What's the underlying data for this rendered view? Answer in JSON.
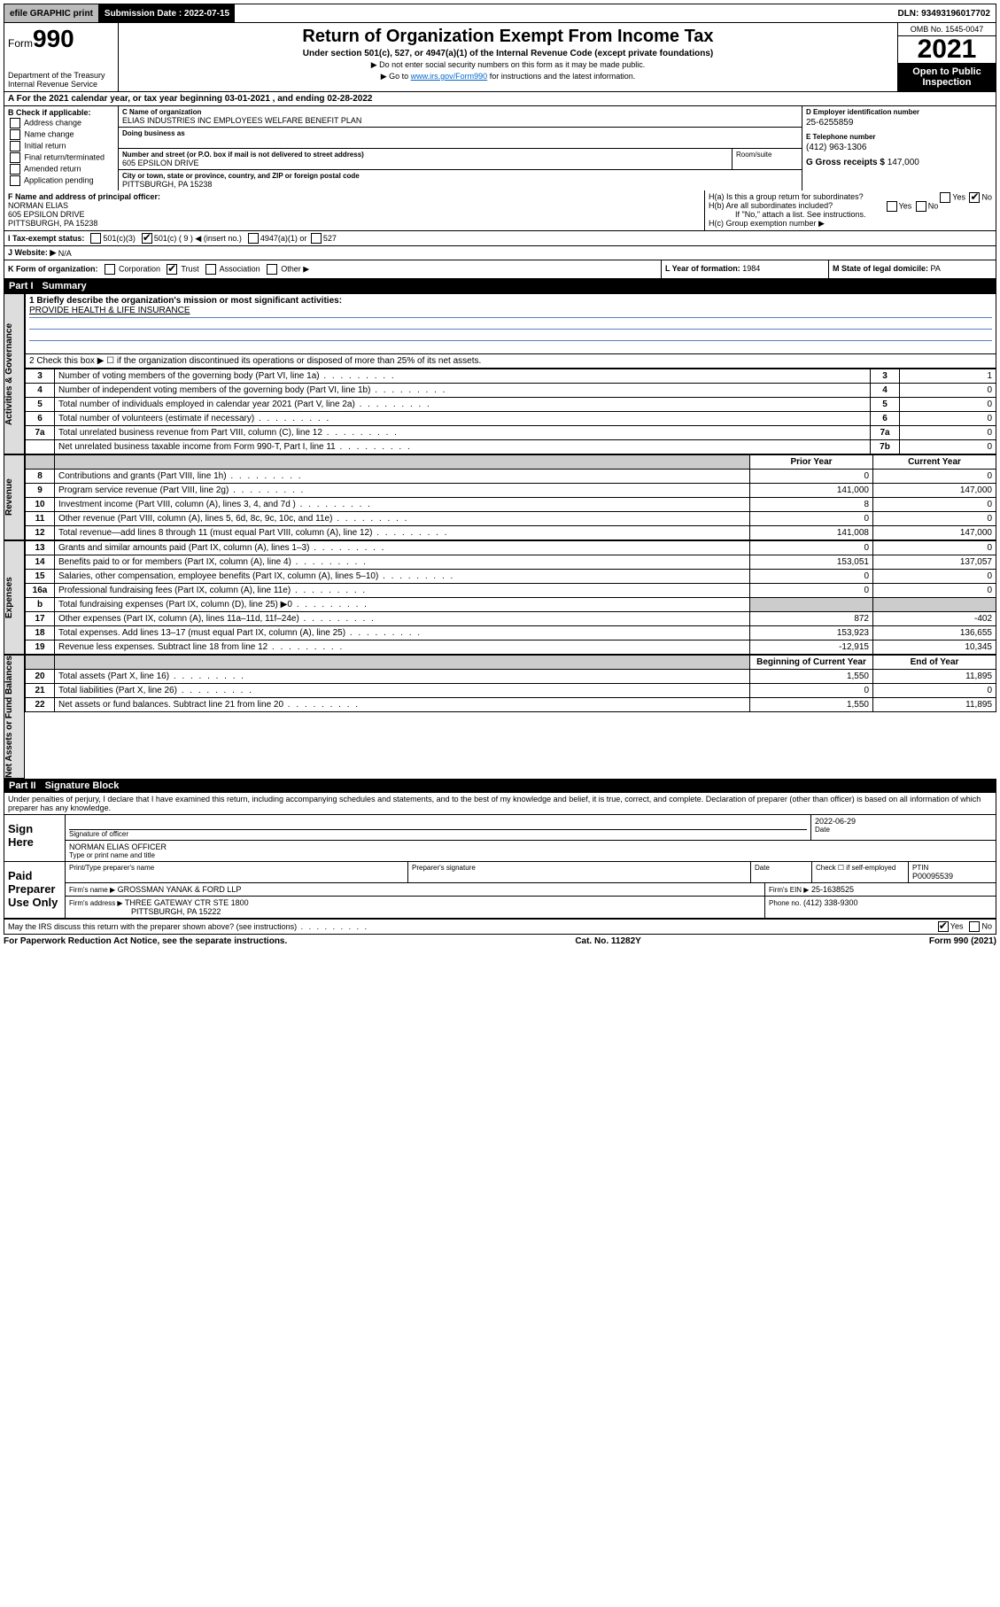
{
  "topbar": {
    "efile": "efile GRAPHIC print",
    "submission_label": "Submission Date : 2022-07-15",
    "dln": "DLN: 93493196017702"
  },
  "header": {
    "form_word": "Form",
    "form_num": "990",
    "dept": "Department of the Treasury",
    "irs": "Internal Revenue Service",
    "title": "Return of Organization Exempt From Income Tax",
    "subtitle": "Under section 501(c), 527, or 4947(a)(1) of the Internal Revenue Code (except private foundations)",
    "note1": "▶ Do not enter social security numbers on this form as it may be made public.",
    "note2_pre": "▶ Go to ",
    "note2_link": "www.irs.gov/Form990",
    "note2_post": " for instructions and the latest information.",
    "omb": "OMB No. 1545-0047",
    "year": "2021",
    "inspection": "Open to Public Inspection"
  },
  "line_a": "A For the 2021 calendar year, or tax year beginning 03-01-2021  , and ending 02-28-2022",
  "col_b": {
    "title": "B Check if applicable:",
    "items": [
      "Address change",
      "Name change",
      "Initial return",
      "Final return/terminated",
      "Amended return",
      "Application pending"
    ]
  },
  "col_c": {
    "name_label": "C Name of organization",
    "name": "ELIAS INDUSTRIES INC EMPLOYEES WELFARE BENEFIT PLAN",
    "dba_label": "Doing business as",
    "addr_label": "Number and street (or P.O. box if mail is not delivered to street address)",
    "addr": "605 EPSILON DRIVE",
    "room_label": "Room/suite",
    "city_label": "City or town, state or province, country, and ZIP or foreign postal code",
    "city": "PITTSBURGH, PA  15238"
  },
  "col_d": {
    "ein_label": "D Employer identification number",
    "ein": "25-6255859",
    "phone_label": "E Telephone number",
    "phone": "(412) 963-1306",
    "gross_label": "G Gross receipts $",
    "gross": "147,000"
  },
  "row_f": {
    "label": "F Name and address of principal officer:",
    "name": "NORMAN ELIAS",
    "addr1": "605 EPSILON DRIVE",
    "addr2": "PITTSBURGH, PA  15238"
  },
  "row_h": {
    "ha": "H(a)  Is this a group return for subordinates?",
    "hb": "H(b)  Are all subordinates included?",
    "hb_note": "If \"No,\" attach a list. See instructions.",
    "hc": "H(c)  Group exemption number ▶",
    "yes": "Yes",
    "no": "No"
  },
  "row_i": {
    "label": "I  Tax-exempt status:",
    "c3": "501(c)(3)",
    "c9": "501(c) ( 9 ) ◀ (insert no.)",
    "a1": "4947(a)(1) or",
    "s527": "527"
  },
  "row_j": {
    "label": "J  Website: ▶",
    "val": "N/A"
  },
  "row_k": {
    "label": "K Form of organization:",
    "corp": "Corporation",
    "trust": "Trust",
    "assoc": "Association",
    "other": "Other ▶"
  },
  "row_l": {
    "label": "L Year of formation:",
    "val": "1984"
  },
  "row_m": {
    "label": "M State of legal domicile:",
    "val": "PA"
  },
  "part1": {
    "label": "Part I",
    "title": "Summary"
  },
  "summary": {
    "l1_label": "1  Briefly describe the organization's mission or most significant activities:",
    "l1_val": "PROVIDE HEALTH & LIFE INSURANCE",
    "l2": "2  Check this box ▶ ☐  if the organization discontinued its operations or disposed of more than 25% of its net assets.",
    "rows_gov": [
      {
        "n": "3",
        "t": "Number of voting members of the governing body (Part VI, line 1a)",
        "an": "3",
        "v": "1"
      },
      {
        "n": "4",
        "t": "Number of independent voting members of the governing body (Part VI, line 1b)",
        "an": "4",
        "v": "0"
      },
      {
        "n": "5",
        "t": "Total number of individuals employed in calendar year 2021 (Part V, line 2a)",
        "an": "5",
        "v": "0"
      },
      {
        "n": "6",
        "t": "Total number of volunteers (estimate if necessary)",
        "an": "6",
        "v": "0"
      },
      {
        "n": "7a",
        "t": "Total unrelated business revenue from Part VIII, column (C), line 12",
        "an": "7a",
        "v": "0"
      },
      {
        "n": "",
        "t": "Net unrelated business taxable income from Form 990-T, Part I, line 11",
        "an": "7b",
        "v": "0"
      }
    ],
    "col_hdr_prior": "Prior Year",
    "col_hdr_curr": "Current Year",
    "rows_rev": [
      {
        "n": "8",
        "t": "Contributions and grants (Part VIII, line 1h)",
        "p": "0",
        "c": "0"
      },
      {
        "n": "9",
        "t": "Program service revenue (Part VIII, line 2g)",
        "p": "141,000",
        "c": "147,000"
      },
      {
        "n": "10",
        "t": "Investment income (Part VIII, column (A), lines 3, 4, and 7d )",
        "p": "8",
        "c": "0"
      },
      {
        "n": "11",
        "t": "Other revenue (Part VIII, column (A), lines 5, 6d, 8c, 9c, 10c, and 11e)",
        "p": "0",
        "c": "0"
      },
      {
        "n": "12",
        "t": "Total revenue—add lines 8 through 11 (must equal Part VIII, column (A), line 12)",
        "p": "141,008",
        "c": "147,000"
      }
    ],
    "rows_exp": [
      {
        "n": "13",
        "t": "Grants and similar amounts paid (Part IX, column (A), lines 1–3)",
        "p": "0",
        "c": "0"
      },
      {
        "n": "14",
        "t": "Benefits paid to or for members (Part IX, column (A), line 4)",
        "p": "153,051",
        "c": "137,057"
      },
      {
        "n": "15",
        "t": "Salaries, other compensation, employee benefits (Part IX, column (A), lines 5–10)",
        "p": "0",
        "c": "0"
      },
      {
        "n": "16a",
        "t": "Professional fundraising fees (Part IX, column (A), line 11e)",
        "p": "0",
        "c": "0"
      },
      {
        "n": "b",
        "t": "Total fundraising expenses (Part IX, column (D), line 25) ▶0",
        "p": "",
        "c": "",
        "grey": true
      },
      {
        "n": "17",
        "t": "Other expenses (Part IX, column (A), lines 11a–11d, 11f–24e)",
        "p": "872",
        "c": "-402"
      },
      {
        "n": "18",
        "t": "Total expenses. Add lines 13–17 (must equal Part IX, column (A), line 25)",
        "p": "153,923",
        "c": "136,655"
      },
      {
        "n": "19",
        "t": "Revenue less expenses. Subtract line 18 from line 12",
        "p": "-12,915",
        "c": "10,345"
      }
    ],
    "col_hdr_beg": "Beginning of Current Year",
    "col_hdr_end": "End of Year",
    "rows_net": [
      {
        "n": "20",
        "t": "Total assets (Part X, line 16)",
        "p": "1,550",
        "c": "11,895"
      },
      {
        "n": "21",
        "t": "Total liabilities (Part X, line 26)",
        "p": "0",
        "c": "0"
      },
      {
        "n": "22",
        "t": "Net assets or fund balances. Subtract line 21 from line 20",
        "p": "1,550",
        "c": "11,895"
      }
    ]
  },
  "vtabs": {
    "gov": "Activities & Governance",
    "rev": "Revenue",
    "exp": "Expenses",
    "net": "Net Assets or Fund Balances"
  },
  "part2": {
    "label": "Part II",
    "title": "Signature Block"
  },
  "penalty": "Under penalties of perjury, I declare that I have examined this return, including accompanying schedules and statements, and to the best of my knowledge and belief, it is true, correct, and complete. Declaration of preparer (other than officer) is based on all information of which preparer has any knowledge.",
  "sign": {
    "here": "Sign Here",
    "sig_officer": "Signature of officer",
    "date_val": "2022-06-29",
    "date_lbl": "Date",
    "name": "NORMAN ELIAS OFFICER",
    "name_lbl": "Type or print name and title"
  },
  "paid": {
    "label": "Paid Preparer Use Only",
    "h1": "Print/Type preparer's name",
    "h2": "Preparer's signature",
    "h3": "Date",
    "h4_a": "Check ☐ if self-employed",
    "h4_b": "PTIN",
    "ptin": "P00095539",
    "firm_name_lbl": "Firm's name    ▶",
    "firm_name": "GROSSMAN YANAK & FORD LLP",
    "firm_ein_lbl": "Firm's EIN ▶",
    "firm_ein": "25-1638525",
    "firm_addr_lbl": "Firm's address ▶",
    "firm_addr1": "THREE GATEWAY CTR STE 1800",
    "firm_addr2": "PITTSBURGH, PA  15222",
    "phone_lbl": "Phone no.",
    "phone": "(412) 338-9300"
  },
  "discuss": {
    "text": "May the IRS discuss this return with the preparer shown above? (see instructions)",
    "yes": "Yes",
    "no": "No"
  },
  "footer": {
    "left": "For Paperwork Reduction Act Notice, see the separate instructions.",
    "mid": "Cat. No. 11282Y",
    "right": "Form 990 (2021)"
  }
}
